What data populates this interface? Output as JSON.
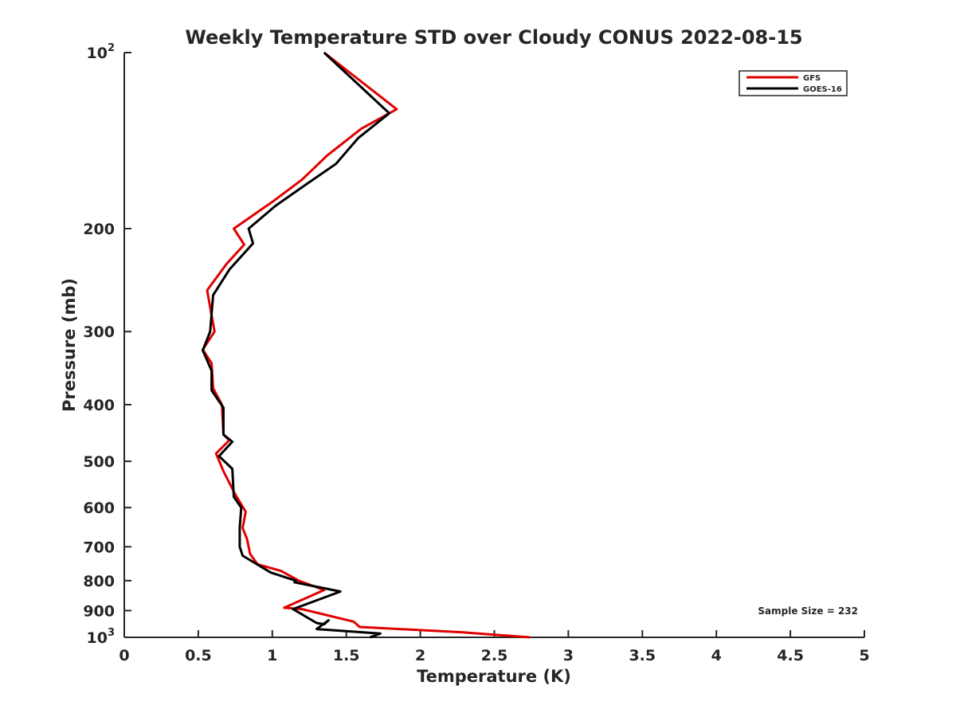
{
  "chart_data": {
    "type": "line",
    "title": "Weekly Temperature STD over Cloudy CONUS 2022-08-15",
    "xlabel": "Temperature (K)",
    "ylabel": "Pressure (mb)",
    "xlim": [
      0,
      5
    ],
    "ylim": [
      100,
      1000
    ],
    "y_scale": "log",
    "y_reversed": true,
    "grid": false,
    "legend_placement": "top-right",
    "x_ticks": [
      0,
      0.5,
      1,
      1.5,
      2,
      2.5,
      3,
      3.5,
      4,
      4.5,
      5
    ],
    "x_tick_labels": [
      "0",
      "0.5",
      "1",
      "1.5",
      "2",
      "2.5",
      "3",
      "3.5",
      "4",
      "4.5",
      "5"
    ],
    "y_ticks": [
      {
        "value": 100,
        "base": "10",
        "exp": "2"
      },
      {
        "value": 200,
        "label": "200"
      },
      {
        "value": 300,
        "label": "300"
      },
      {
        "value": 400,
        "label": "400"
      },
      {
        "value": 500,
        "label": "500"
      },
      {
        "value": 600,
        "label": "600"
      },
      {
        "value": 700,
        "label": "700"
      },
      {
        "value": 800,
        "label": "800"
      },
      {
        "value": 900,
        "label": "900"
      },
      {
        "value": 1000,
        "base": "10",
        "exp": "3"
      }
    ],
    "annotation": "Sample Size = 232",
    "series": [
      {
        "name": "GFS",
        "color": "#e00000",
        "points": [
          [
            1.35,
            100
          ],
          [
            1.84,
            125
          ],
          [
            1.6,
            135
          ],
          [
            1.37,
            150
          ],
          [
            1.2,
            165
          ],
          [
            1.0,
            180
          ],
          [
            0.74,
            200
          ],
          [
            0.81,
            213
          ],
          [
            0.69,
            230
          ],
          [
            0.56,
            255
          ],
          [
            0.61,
            300
          ],
          [
            0.53,
            322
          ],
          [
            0.59,
            340
          ],
          [
            0.6,
            375
          ],
          [
            0.66,
            400
          ],
          [
            0.67,
            450
          ],
          [
            0.71,
            460
          ],
          [
            0.62,
            485
          ],
          [
            0.67,
            520
          ],
          [
            0.75,
            570
          ],
          [
            0.82,
            610
          ],
          [
            0.8,
            650
          ],
          [
            0.83,
            680
          ],
          [
            0.85,
            720
          ],
          [
            0.9,
            750
          ],
          [
            1.06,
            770
          ],
          [
            1.18,
            800
          ],
          [
            1.35,
            830
          ],
          [
            1.08,
            890
          ],
          [
            1.2,
            895
          ],
          [
            1.55,
            940
          ],
          [
            1.59,
            960
          ],
          [
            2.28,
            980
          ],
          [
            2.74,
            1000
          ]
        ]
      },
      {
        "name": "GOES-16",
        "color": "#000000",
        "points": [
          [
            1.35,
            100
          ],
          [
            1.79,
            127
          ],
          [
            1.58,
            140
          ],
          [
            1.43,
            155
          ],
          [
            1.2,
            170
          ],
          [
            1.02,
            183
          ],
          [
            0.84,
            200
          ],
          [
            0.87,
            212
          ],
          [
            0.71,
            235
          ],
          [
            0.6,
            260
          ],
          [
            0.58,
            300
          ],
          [
            0.53,
            323
          ],
          [
            0.59,
            350
          ],
          [
            0.59,
            378
          ],
          [
            0.67,
            405
          ],
          [
            0.67,
            450
          ],
          [
            0.73,
            463
          ],
          [
            0.64,
            490
          ],
          [
            0.73,
            515
          ],
          [
            0.74,
            575
          ],
          [
            0.79,
            600
          ],
          [
            0.78,
            650
          ],
          [
            0.78,
            700
          ],
          [
            0.8,
            725
          ],
          [
            0.99,
            775
          ],
          [
            1.16,
            800
          ],
          [
            1.15,
            805
          ],
          [
            1.46,
            835
          ],
          [
            1.14,
            895
          ],
          [
            1.3,
            945
          ],
          [
            1.35,
            950
          ],
          [
            1.38,
            935
          ],
          [
            1.3,
            968
          ],
          [
            1.73,
            985
          ],
          [
            1.66,
            1000
          ]
        ]
      }
    ]
  }
}
